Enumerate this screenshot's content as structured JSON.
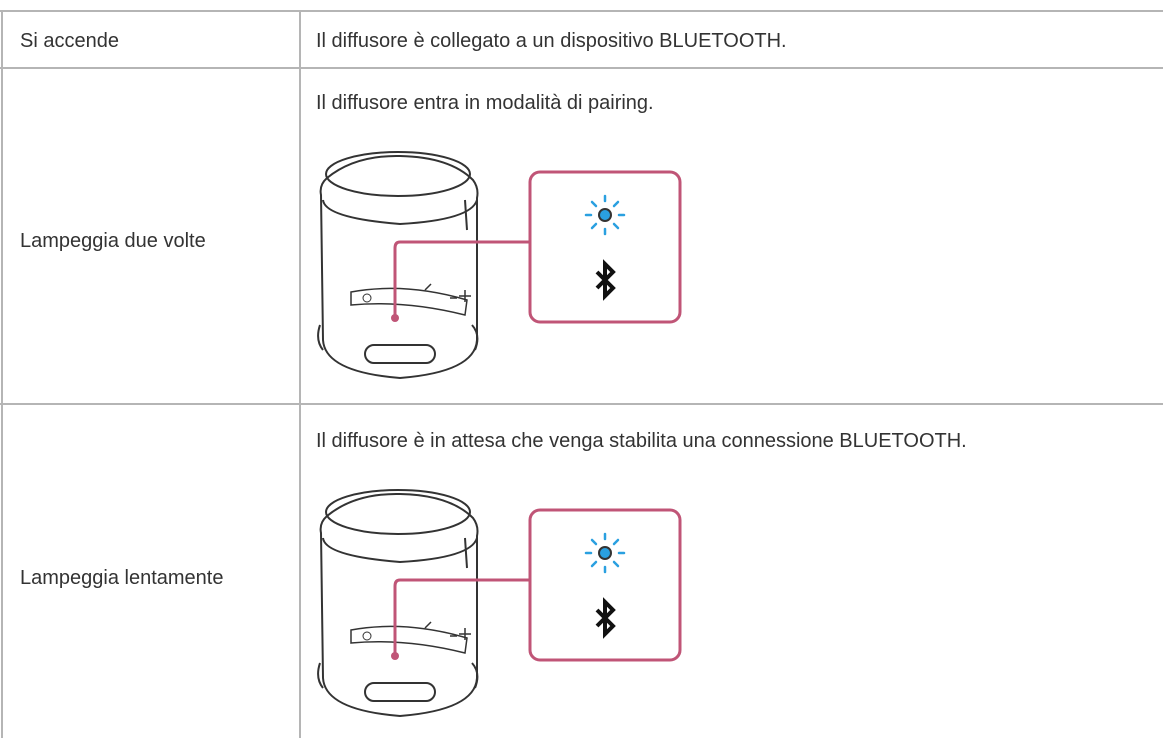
{
  "table": {
    "rows": [
      [
        "Si accende",
        "Il diffusore è collegato a un dispositivo BLUETOOTH."
      ],
      [
        "Lampeggia due volte",
        "Il diffusore entra in modalità di pairing."
      ],
      [
        "Lampeggia lentamente",
        "Il diffusore è in attesa che venga stabilita una connessione BLUETOOTH."
      ]
    ]
  }
}
